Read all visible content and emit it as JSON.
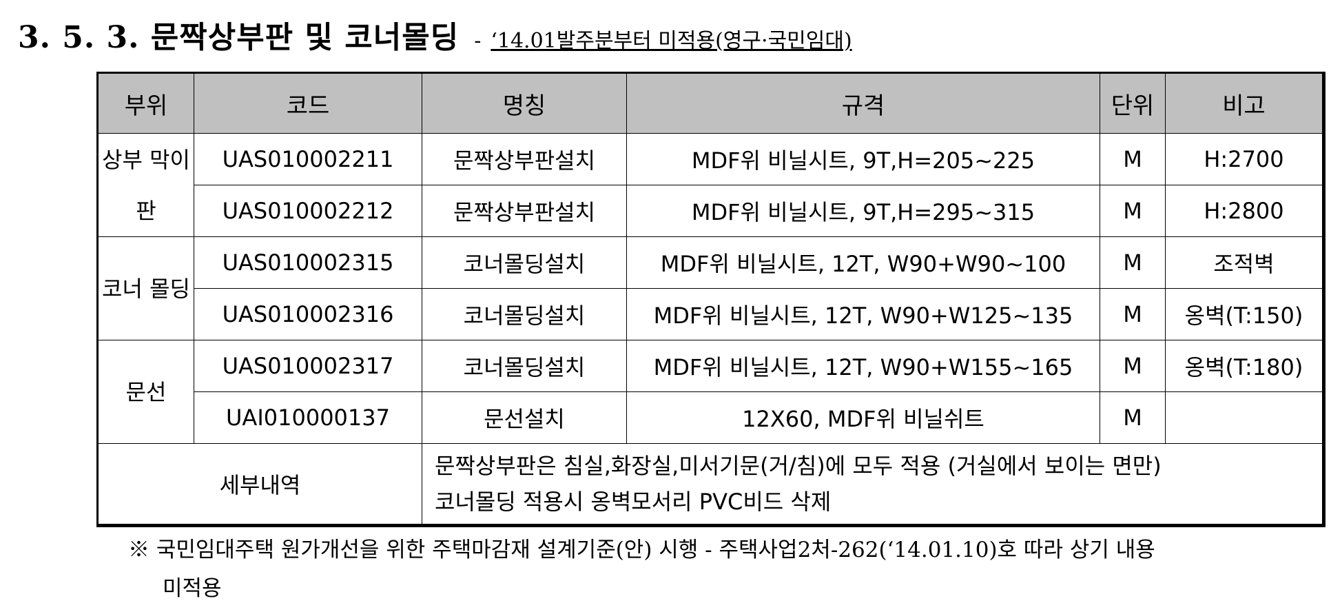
{
  "heading": {
    "title": "3. 5. 3. 문짝상부판 및 코너몰딩",
    "dash": "-",
    "subtitle": "‘14.01발주분부터 미적용(영구·국민임대)"
  },
  "table": {
    "headers": [
      "부위",
      "코드",
      "명칭",
      "규격",
      "단위",
      "비고"
    ],
    "groups": [
      {
        "part": "상부 막이판",
        "rows": [
          {
            "code": "UAS010002211",
            "name": "문짝상부판설치",
            "spec": "MDF위 비닐시트, 9T,H=205~225",
            "unit": "M",
            "note": "H:2700"
          },
          {
            "code": "UAS010002212",
            "name": "문짝상부판설치",
            "spec": "MDF위 비닐시트, 9T,H=295~315",
            "unit": "M",
            "note": "H:2800"
          }
        ]
      },
      {
        "part": "코너 몰딩",
        "rows": [
          {
            "code": "UAS010002315",
            "name": "코너몰딩설치",
            "spec": "MDF위 비닐시트, 12T, W90+W90~100",
            "unit": "M",
            "note": "조적벽"
          },
          {
            "code": "UAS010002316",
            "name": "코너몰딩설치",
            "spec": "MDF위 비닐시트, 12T, W90+W125~135",
            "unit": "M",
            "note": "옹벽(T:150)"
          }
        ]
      },
      {
        "part": "문선",
        "rows": [
          {
            "code": "UAS010002317",
            "name": "코너몰딩설치",
            "spec": "MDF위 비닐시트, 12T, W90+W155~165",
            "unit": "M",
            "note": "옹벽(T:180)"
          },
          {
            "code": "UAI010000137",
            "name": "문선설치",
            "spec": "12X60, MDF위 비닐쉬트",
            "unit": "M",
            "note": ""
          }
        ]
      }
    ],
    "detail": {
      "label": "세부내역",
      "lines": [
        "문짝상부판은 침실,화장실,미서기문(거/침)에 모두 적용 (거실에서 보이는 면만)",
        "코너몰딩 적용시 옹벽모서리 PVC비드 삭제"
      ]
    }
  },
  "footnote": {
    "line1": "※ 국민임대주택 원가개선을 위한 주택마감재 설계기준(안) 시행 - 주택사업2처-262(‘14.01.10)호 따라 상기 내용",
    "line2": "미적용"
  }
}
